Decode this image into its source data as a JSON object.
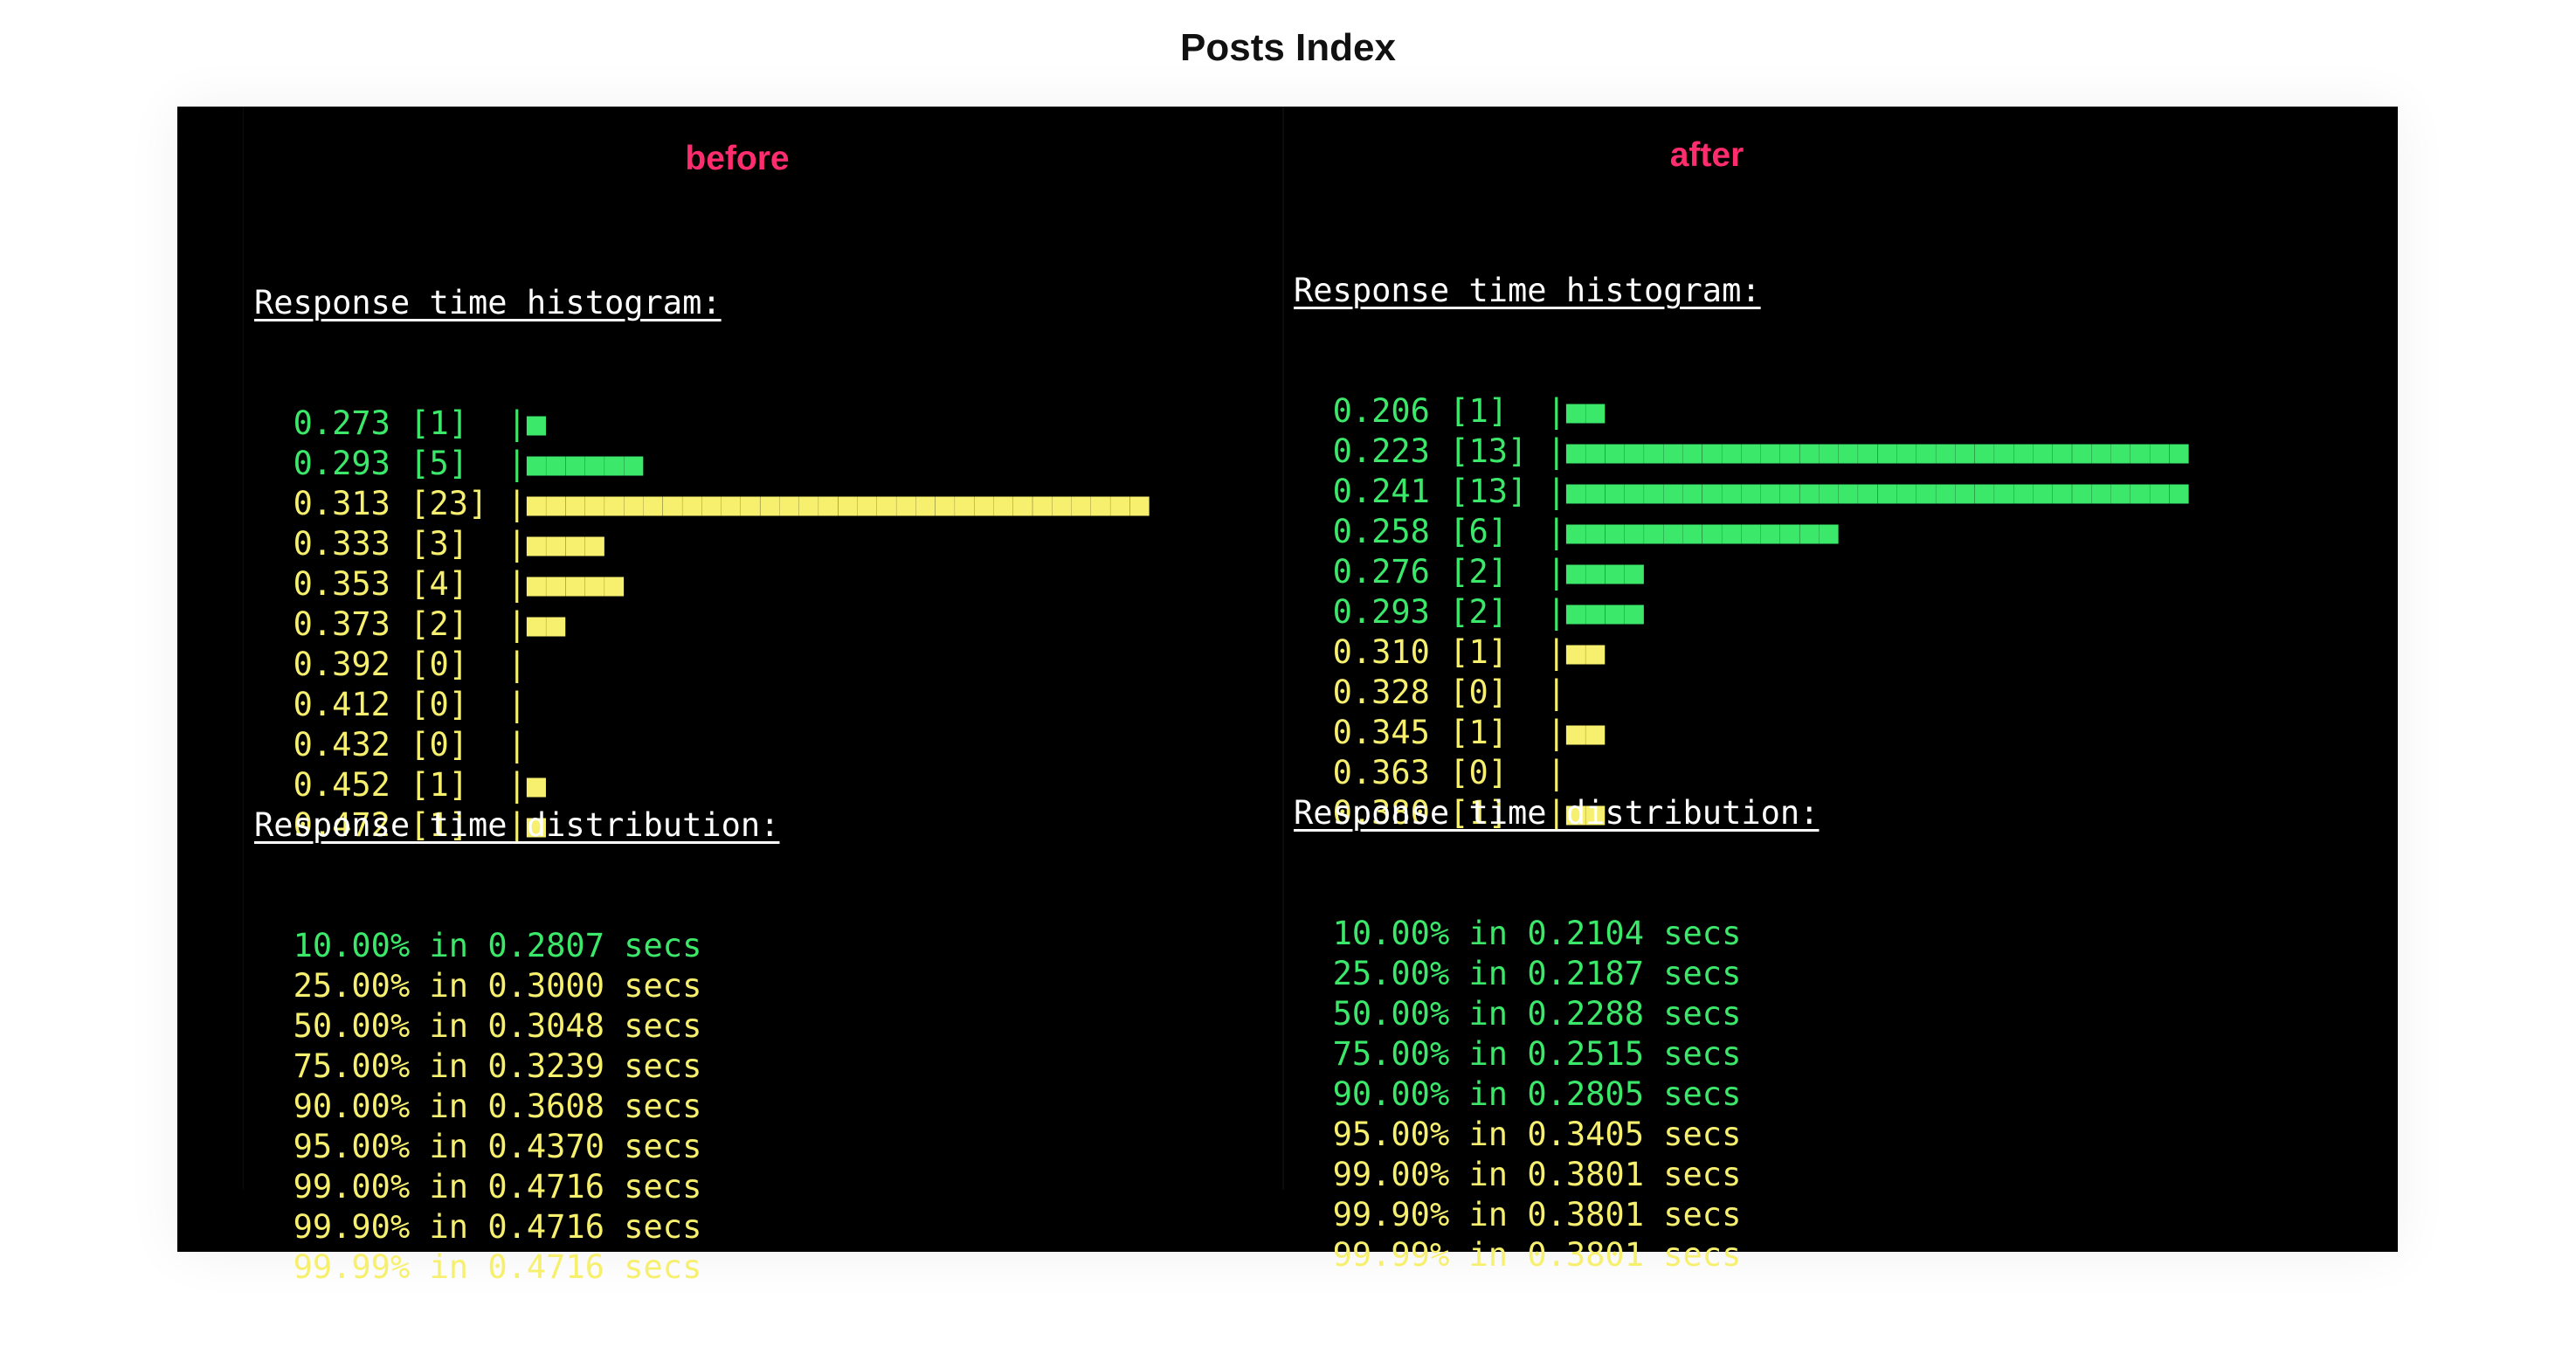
{
  "page_title": "Posts Index",
  "colors": {
    "green": "#3be86a",
    "yellow": "#f7ef6e",
    "label": "#ff2d6e"
  },
  "before": {
    "label": "before",
    "histogram_heading": "Response time histogram:",
    "histogram": [
      {
        "value": "0.273",
        "count": "[1]",
        "bar": "|■",
        "color": "green"
      },
      {
        "value": "0.293",
        "count": "[5]",
        "bar": "|■■■■■■",
        "color": "green"
      },
      {
        "value": "0.313",
        "count": "[23]",
        "bar": "|■■■■■■■■■■■■■■■■■■■■■■■■■■■■■■■■",
        "color": "yellow"
      },
      {
        "value": "0.333",
        "count": "[3]",
        "bar": "|■■■■",
        "color": "yellow"
      },
      {
        "value": "0.353",
        "count": "[4]",
        "bar": "|■■■■■",
        "color": "yellow"
      },
      {
        "value": "0.373",
        "count": "[2]",
        "bar": "|■■",
        "color": "yellow"
      },
      {
        "value": "0.392",
        "count": "[0]",
        "bar": "|",
        "color": "yellow"
      },
      {
        "value": "0.412",
        "count": "[0]",
        "bar": "|",
        "color": "yellow"
      },
      {
        "value": "0.432",
        "count": "[0]",
        "bar": "|",
        "color": "yellow"
      },
      {
        "value": "0.452",
        "count": "[1]",
        "bar": "|■",
        "color": "yellow"
      },
      {
        "value": "0.472",
        "count": "[1]",
        "bar": "|■",
        "color": "yellow"
      }
    ],
    "distribution_heading": "Response time distribution:",
    "distribution": [
      {
        "text": "10.00% in 0.2807 secs",
        "color": "green"
      },
      {
        "text": "25.00% in 0.3000 secs",
        "color": "yellow"
      },
      {
        "text": "50.00% in 0.3048 secs",
        "color": "yellow"
      },
      {
        "text": "75.00% in 0.3239 secs",
        "color": "yellow"
      },
      {
        "text": "90.00% in 0.3608 secs",
        "color": "yellow"
      },
      {
        "text": "95.00% in 0.4370 secs",
        "color": "yellow"
      },
      {
        "text": "99.00% in 0.4716 secs",
        "color": "yellow"
      },
      {
        "text": "99.90% in 0.4716 secs",
        "color": "yellow"
      },
      {
        "text": "99.99% in 0.4716 secs",
        "color": "yellow"
      }
    ]
  },
  "after": {
    "label": "after",
    "histogram_heading": "Response time histogram:",
    "histogram": [
      {
        "value": "0.206",
        "count": "[1]",
        "bar": "|■■",
        "color": "green"
      },
      {
        "value": "0.223",
        "count": "[13]",
        "bar": "|■■■■■■■■■■■■■■■■■■■■■■■■■■■■■■■■",
        "color": "green"
      },
      {
        "value": "0.241",
        "count": "[13]",
        "bar": "|■■■■■■■■■■■■■■■■■■■■■■■■■■■■■■■■",
        "color": "green"
      },
      {
        "value": "0.258",
        "count": "[6]",
        "bar": "|■■■■■■■■■■■■■■",
        "color": "green"
      },
      {
        "value": "0.276",
        "count": "[2]",
        "bar": "|■■■■",
        "color": "green"
      },
      {
        "value": "0.293",
        "count": "[2]",
        "bar": "|■■■■",
        "color": "green"
      },
      {
        "value": "0.310",
        "count": "[1]",
        "bar": "|■■",
        "color": "yellow"
      },
      {
        "value": "0.328",
        "count": "[0]",
        "bar": "|",
        "color": "yellow"
      },
      {
        "value": "0.345",
        "count": "[1]",
        "bar": "|■■",
        "color": "yellow"
      },
      {
        "value": "0.363",
        "count": "[0]",
        "bar": "|",
        "color": "yellow"
      },
      {
        "value": "0.380",
        "count": "[1]",
        "bar": "|■■",
        "color": "yellow"
      }
    ],
    "distribution_heading": "Response time distribution:",
    "distribution": [
      {
        "text": "10.00% in 0.2104 secs",
        "color": "green"
      },
      {
        "text": "25.00% in 0.2187 secs",
        "color": "green"
      },
      {
        "text": "50.00% in 0.2288 secs",
        "color": "green"
      },
      {
        "text": "75.00% in 0.2515 secs",
        "color": "green"
      },
      {
        "text": "90.00% in 0.2805 secs",
        "color": "green"
      },
      {
        "text": "95.00% in 0.3405 secs",
        "color": "yellow"
      },
      {
        "text": "99.00% in 0.3801 secs",
        "color": "yellow"
      },
      {
        "text": "99.90% in 0.3801 secs",
        "color": "yellow"
      },
      {
        "text": "99.99% in 0.3801 secs",
        "color": "yellow"
      }
    ]
  }
}
